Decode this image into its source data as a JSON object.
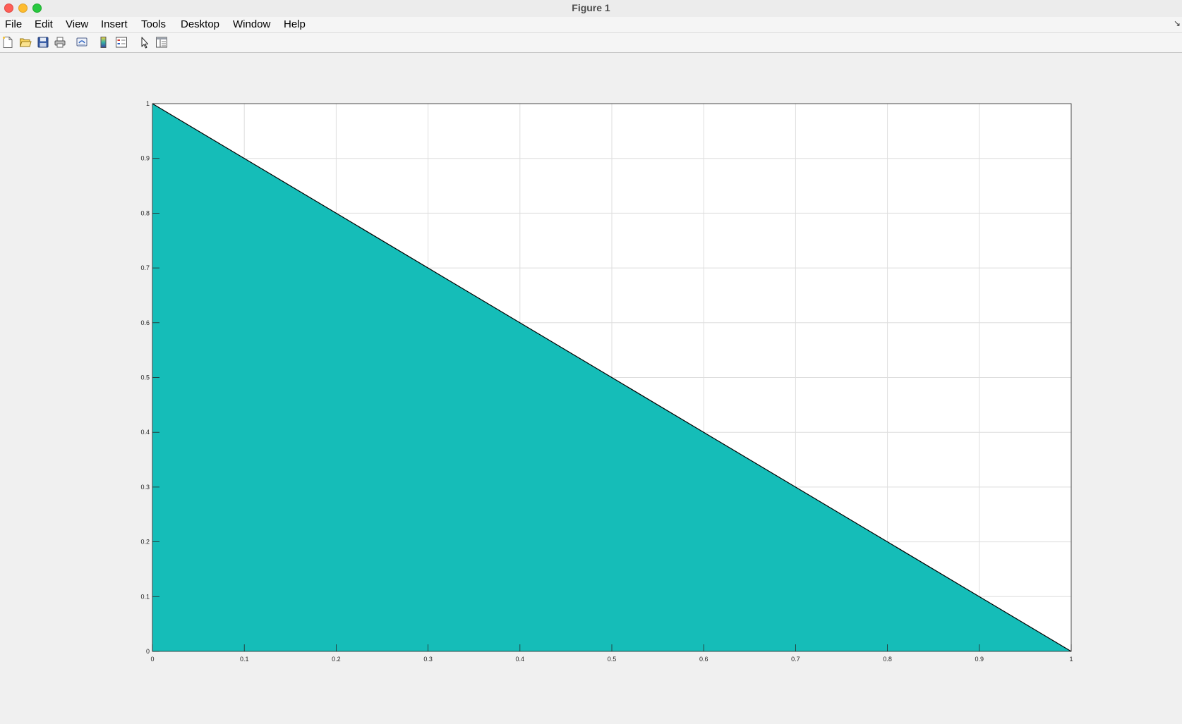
{
  "window": {
    "title": "Figure 1"
  },
  "menubar": {
    "items": [
      "File",
      "Edit",
      "View",
      "Insert",
      "Tools",
      "Desktop",
      "Window",
      "Help"
    ]
  },
  "toolbar": {
    "icons": [
      "new-figure-icon",
      "open-file-icon",
      "save-icon",
      "print-icon",
      "link-plot-icon",
      "insert-colorbar-icon",
      "insert-legend-icon",
      "edit-plot-icon",
      "show-plot-tools-icon"
    ]
  },
  "chart_data": {
    "type": "area",
    "x": [
      0,
      1
    ],
    "y": [
      1,
      0
    ],
    "fill_color": "#15bdb8",
    "edge_color": "#000000",
    "xlim": [
      0,
      1
    ],
    "ylim": [
      0,
      1
    ],
    "xticks": [
      "0",
      "0.1",
      "0.2",
      "0.3",
      "0.4",
      "0.5",
      "0.6",
      "0.7",
      "0.8",
      "0.9",
      "1"
    ],
    "yticks": [
      "0",
      "0.1",
      "0.2",
      "0.3",
      "0.4",
      "0.5",
      "0.6",
      "0.7",
      "0.8",
      "0.9",
      "1"
    ],
    "grid": true,
    "title": "",
    "xlabel": "",
    "ylabel": ""
  }
}
